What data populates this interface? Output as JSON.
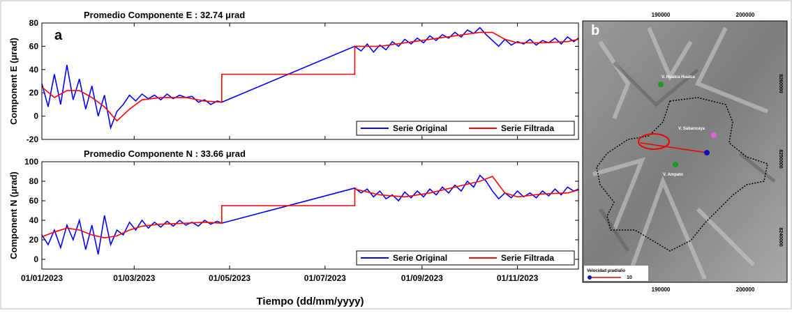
{
  "chart_data": [
    {
      "type": "line",
      "title": "Promedio Componente E :  32.74 μrad",
      "ylabel": "Component E  (μrad)",
      "panel_label": "a",
      "xlim": [
        "01/01/2023",
        "10/12/2023"
      ],
      "xticks": [
        "01/01/2023",
        "01/03/2023",
        "01/05/2023",
        "01/07/2023",
        "01/09/2023",
        "01/11/2023"
      ],
      "show_xtick_labels": false,
      "ylim": [
        -20,
        80
      ],
      "yticks": [
        -20,
        0,
        20,
        40,
        60,
        80
      ],
      "legend": "lower right",
      "series": [
        {
          "name": "Serie Original",
          "color": "#0000ff",
          "x": [
            "01/01/2023",
            "05/01/2023",
            "09/01/2023",
            "13/01/2023",
            "17/01/2023",
            "21/01/2023",
            "25/01/2023",
            "29/01/2023",
            "02/02/2023",
            "06/02/2023",
            "10/02/2023",
            "14/02/2023",
            "18/02/2023",
            "22/02/2023",
            "26/02/2023",
            "02/03/2023",
            "06/03/2023",
            "10/03/2023",
            "14/03/2023",
            "18/03/2023",
            "22/03/2023",
            "26/03/2023",
            "30/03/2023",
            "03/04/2023",
            "07/04/2023",
            "11/04/2023",
            "15/04/2023",
            "19/04/2023",
            "23/04/2023",
            "26/04/2023",
            "20/07/2023",
            "24/07/2023",
            "28/07/2023",
            "01/08/2023",
            "05/08/2023",
            "09/08/2023",
            "13/08/2023",
            "17/08/2023",
            "21/08/2023",
            "25/08/2023",
            "29/08/2023",
            "02/09/2023",
            "06/09/2023",
            "10/09/2023",
            "14/09/2023",
            "18/09/2023",
            "22/09/2023",
            "26/09/2023",
            "30/09/2023",
            "04/10/2023",
            "08/10/2023",
            "12/10/2023",
            "16/10/2023",
            "20/10/2023",
            "24/10/2023",
            "28/10/2023",
            "01/11/2023",
            "05/11/2023",
            "09/11/2023",
            "13/11/2023",
            "17/11/2023",
            "21/11/2023",
            "25/11/2023",
            "29/11/2023",
            "03/12/2023",
            "07/12/2023",
            "10/12/2023"
          ],
          "values": [
            28,
            8,
            36,
            10,
            44,
            14,
            32,
            6,
            26,
            0,
            18,
            -10,
            4,
            10,
            18,
            13,
            19,
            15,
            18,
            14,
            19,
            15,
            18,
            16,
            17,
            12,
            14,
            10,
            13,
            12,
            60,
            56,
            62,
            55,
            61,
            57,
            64,
            60,
            66,
            62,
            67,
            63,
            69,
            65,
            70,
            67,
            72,
            68,
            74,
            71,
            76,
            70,
            65,
            60,
            66,
            61,
            64,
            62,
            66,
            61,
            65,
            63,
            67,
            62,
            68,
            64,
            67
          ]
        },
        {
          "name": "Serie Filtrada",
          "color": "#ff0000",
          "x": [
            "01/01/2023",
            "09/01/2023",
            "17/01/2023",
            "25/01/2023",
            "02/02/2023",
            "10/02/2023",
            "18/02/2023",
            "26/02/2023",
            "06/03/2023",
            "18/03/2023",
            "03/04/2023",
            "15/04/2023",
            "26/04/2023",
            "26/04/2023",
            "20/07/2023",
            "20/07/2023",
            "05/08/2023",
            "21/08/2023",
            "06/09/2023",
            "22/09/2023",
            "08/10/2023",
            "16/10/2023",
            "24/10/2023",
            "01/11/2023",
            "17/11/2023",
            "03/12/2023",
            "10/12/2023"
          ],
          "values": [
            25,
            16,
            22,
            22,
            16,
            8,
            -4,
            6,
            14,
            16,
            16,
            13,
            12,
            36,
            36,
            60,
            60,
            63,
            66,
            69,
            72,
            72,
            66,
            63,
            63,
            64,
            66
          ]
        }
      ]
    },
    {
      "type": "line",
      "title": "Promedio Componente N :  33.66 μrad",
      "ylabel": "Component N  (μrad)",
      "xlabel": "Tiempo  (dd/mm/yyyy)",
      "xlim": [
        "01/01/2023",
        "10/12/2023"
      ],
      "xticks": [
        "01/01/2023",
        "01/03/2023",
        "01/05/2023",
        "01/07/2023",
        "01/09/2023",
        "01/11/2023"
      ],
      "show_xtick_labels": true,
      "ylim": [
        -10,
        100
      ],
      "yticks": [
        0,
        20,
        40,
        60,
        80,
        100
      ],
      "legend": "lower right",
      "series": [
        {
          "name": "Serie Original",
          "color": "#0000ff",
          "x": [
            "01/01/2023",
            "05/01/2023",
            "09/01/2023",
            "13/01/2023",
            "17/01/2023",
            "21/01/2023",
            "25/01/2023",
            "29/01/2023",
            "02/02/2023",
            "06/02/2023",
            "10/02/2023",
            "14/02/2023",
            "18/02/2023",
            "22/02/2023",
            "26/02/2023",
            "02/03/2023",
            "06/03/2023",
            "10/03/2023",
            "14/03/2023",
            "18/03/2023",
            "22/03/2023",
            "26/03/2023",
            "30/03/2023",
            "03/04/2023",
            "07/04/2023",
            "11/04/2023",
            "15/04/2023",
            "19/04/2023",
            "23/04/2023",
            "26/04/2023",
            "20/07/2023",
            "24/07/2023",
            "28/07/2023",
            "01/08/2023",
            "05/08/2023",
            "09/08/2023",
            "13/08/2023",
            "17/08/2023",
            "21/08/2023",
            "25/08/2023",
            "29/08/2023",
            "02/09/2023",
            "06/09/2023",
            "10/09/2023",
            "14/09/2023",
            "18/09/2023",
            "22/09/2023",
            "26/09/2023",
            "30/09/2023",
            "04/10/2023",
            "08/10/2023",
            "12/10/2023",
            "16/10/2023",
            "20/10/2023",
            "24/10/2023",
            "28/10/2023",
            "01/11/2023",
            "05/11/2023",
            "09/11/2023",
            "13/11/2023",
            "17/11/2023",
            "21/11/2023",
            "25/11/2023",
            "29/11/2023",
            "03/12/2023",
            "07/12/2023",
            "10/12/2023"
          ],
          "values": [
            25,
            15,
            30,
            12,
            35,
            20,
            40,
            10,
            35,
            5,
            45,
            15,
            30,
            25,
            38,
            30,
            40,
            32,
            38,
            33,
            39,
            34,
            40,
            35,
            38,
            34,
            40,
            36,
            39,
            37,
            73,
            68,
            72,
            64,
            70,
            62,
            66,
            60,
            69,
            63,
            70,
            64,
            72,
            66,
            74,
            68,
            76,
            70,
            80,
            74,
            86,
            80,
            70,
            62,
            68,
            63,
            70,
            64,
            68,
            63,
            70,
            65,
            72,
            66,
            74,
            70,
            72
          ]
        },
        {
          "name": "Serie Filtrada",
          "color": "#ff0000",
          "x": [
            "01/01/2023",
            "09/01/2023",
            "17/01/2023",
            "25/01/2023",
            "02/02/2023",
            "10/02/2023",
            "18/02/2023",
            "26/02/2023",
            "06/03/2023",
            "18/03/2023",
            "03/04/2023",
            "15/04/2023",
            "26/04/2023",
            "26/04/2023",
            "20/07/2023",
            "20/07/2023",
            "05/08/2023",
            "21/08/2023",
            "06/09/2023",
            "22/09/2023",
            "08/10/2023",
            "16/10/2023",
            "24/10/2023",
            "01/11/2023",
            "17/11/2023",
            "03/12/2023",
            "10/12/2023"
          ],
          "values": [
            23,
            28,
            32,
            30,
            25,
            22,
            24,
            30,
            34,
            36,
            37,
            38,
            37,
            55,
            55,
            72,
            66,
            64,
            68,
            74,
            80,
            85,
            68,
            64,
            67,
            68,
            71
          ]
        }
      ]
    }
  ],
  "map": {
    "panel_label": "b",
    "x_labels": [
      "190000",
      "200000"
    ],
    "y_labels": [
      "8260000",
      "8250000",
      "8240000"
    ],
    "volcanoes": [
      "V. Hualca Hualca",
      "V. Sabancaya",
      "V. Ampato"
    ],
    "legend_title": "Velocidad   μrad/año",
    "legend_value": "10"
  }
}
